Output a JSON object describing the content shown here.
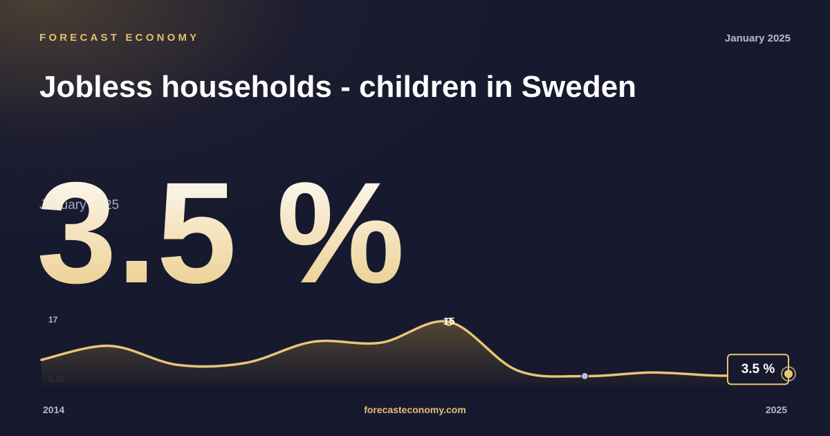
{
  "brand": "FORECAST ECONOMY",
  "date": "January 2025",
  "title": "Jobless households - children in Sweden",
  "headline": {
    "value": 3.5,
    "label": "3.5 %"
  },
  "footer": "forecasteconomy.com",
  "chart_data": {
    "type": "line",
    "x": [
      2014,
      2015,
      2016,
      2017,
      2018,
      2019,
      2020,
      2021,
      2022,
      2023,
      2024,
      2025
    ],
    "values": [
      6.6,
      9.7,
      5.5,
      5.9,
      10.6,
      10.4,
      15,
      4.3,
      3.0,
      3.8,
      3.1,
      3.5
    ],
    "value_labels": [
      null,
      null,
      null,
      null,
      null,
      null,
      null,
      null,
      null,
      null,
      null,
      "3.5 %"
    ],
    "color": "#e8c677",
    "xlim": [
      2014,
      2025
    ],
    "xticks": [
      2014,
      2025
    ],
    "ylim": [
      0.32,
      17
    ],
    "yticks": [
      0.32,
      17
    ]
  }
}
